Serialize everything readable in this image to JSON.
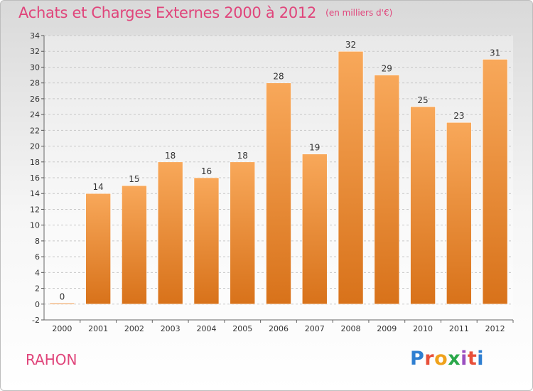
{
  "title": "Achats et Charges Externes 2000 à 2012",
  "unit": "(en milliers d'€)",
  "place": "RAHON",
  "logo": {
    "text": "Proxiti",
    "colors": [
      "#2f7fd1",
      "#e8503a",
      "#f0a21c",
      "#2aa84a",
      "#9a4fc0",
      "#e8503a",
      "#2f7fd1"
    ]
  },
  "colors": {
    "bar_light": "#f8a85a",
    "bar_dark": "#d8721a",
    "accent": "#e0457b"
  },
  "chart_data": {
    "type": "bar",
    "categories": [
      "2000",
      "2001",
      "2002",
      "2003",
      "2004",
      "2005",
      "2006",
      "2007",
      "2008",
      "2009",
      "2010",
      "2011",
      "2012"
    ],
    "values": [
      0,
      14,
      15,
      18,
      16,
      18,
      28,
      19,
      32,
      29,
      25,
      23,
      31
    ],
    "ylim": [
      -2,
      34
    ],
    "yticks": [
      -2,
      0,
      2,
      4,
      6,
      8,
      10,
      12,
      14,
      16,
      18,
      20,
      22,
      24,
      26,
      28,
      30,
      32,
      34
    ],
    "grid": true,
    "legend": "none"
  }
}
